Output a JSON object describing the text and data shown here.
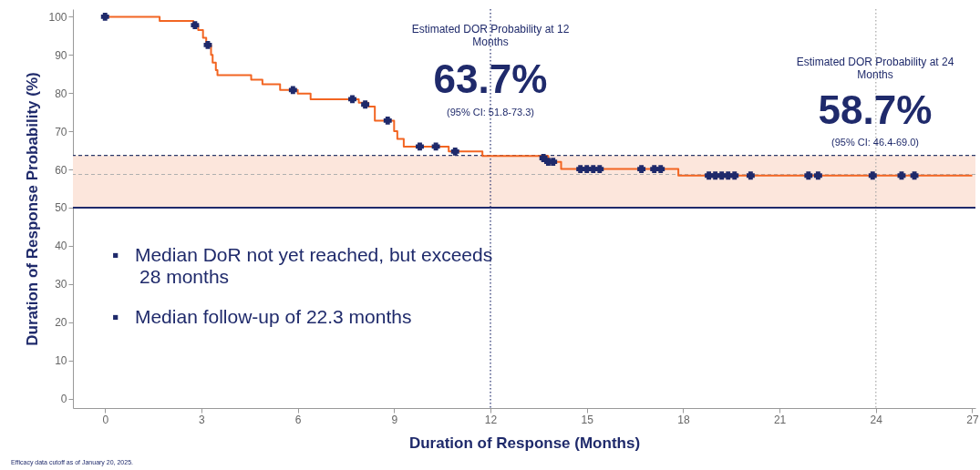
{
  "chart_data": {
    "type": "step",
    "xlabel": "Duration of Response (Months)",
    "ylabel": "Duration of Response Probability (%)",
    "xlim": [
      -1,
      27.1
    ],
    "ylim": [
      -2.5,
      102
    ],
    "xticks": [
      0,
      3,
      6,
      9,
      12,
      15,
      18,
      21,
      24,
      27
    ],
    "yticks": [
      0,
      10,
      20,
      30,
      40,
      50,
      60,
      70,
      80,
      90,
      100
    ],
    "grid": false,
    "series": [
      {
        "type": "step",
        "color": "#f26522",
        "line_style": "solid",
        "marker": "none",
        "x": [
          0,
          1.7,
          2.75,
          2.9,
          3.05,
          3.15,
          3.3,
          3.35,
          3.45,
          3.5,
          4.55,
          4.9,
          5.45,
          6.0,
          6.4,
          7.9,
          8.2,
          8.4,
          9.0,
          9.1,
          9.3,
          10.7,
          11.75,
          13.8,
          14.2,
          17.85,
          27
        ],
        "values": [
          100,
          98.9,
          97.8,
          96.5,
          94.5,
          92.6,
          90,
          88,
          86,
          84.7,
          83.5,
          82.3,
          80.8,
          79.9,
          78.4,
          77.5,
          76.5,
          72.8,
          70,
          68,
          66,
          64.7,
          63.5,
          62,
          60.1,
          58.4,
          58.4
        ]
      },
      {
        "type": "scatter",
        "color": "#1f2a6b",
        "marker": "cross",
        "x": [
          0,
          2.8,
          3.2,
          5.85,
          7.7,
          8.1,
          8.8,
          9.8,
          10.3,
          10.9,
          13.65,
          13.8,
          13.95,
          14.8,
          15.0,
          15.2,
          15.4,
          16.7,
          17.1,
          17.3,
          18.8,
          19.0,
          19.2,
          19.4,
          19.6,
          20.1,
          21.9,
          22.2,
          23.9,
          24.8,
          25.2
        ],
        "values": [
          100,
          97.8,
          92.6,
          80.8,
          78.4,
          77,
          72.8,
          66,
          66,
          64.7,
          63,
          62,
          62,
          60.1,
          60.1,
          60.1,
          60.1,
          60.1,
          60.1,
          60.1,
          58.4,
          58.4,
          58.4,
          58.4,
          58.4,
          58.4,
          58.4,
          58.4,
          58.4,
          58.4,
          58.4
        ]
      }
    ],
    "ref_lines": [
      {
        "axis": "y",
        "value": 63.7,
        "line_style": "dashed",
        "color": "#2b3a6b"
      },
      {
        "axis": "y",
        "value": 58.7,
        "line_style": "dashed",
        "color": "#b0b0b0"
      },
      {
        "axis": "x",
        "value": 12,
        "line_style": "dotted",
        "color": "#1f2a6b"
      },
      {
        "axis": "x",
        "value": 24,
        "line_style": "dotted",
        "color": "#a8a8a8"
      },
      {
        "axis": "y",
        "value": 50,
        "line_style": "solid",
        "color": "#1f2a6b"
      }
    ],
    "bands": [
      {
        "axis": "y",
        "from": 50,
        "to": 63.7,
        "color": "#fce6dc"
      }
    ],
    "annotations": [
      "Estimated DOR Probability at 12 Months",
      "63.7%",
      "(95% CI: 51.8-73.3)",
      "Estimated DOR Probability at 24 Months",
      "58.7%",
      "(95% CI: 46.4-69.0)",
      "▪   Median DoR not yet reached, but exceeds 28 months",
      "▪   Median follow-up of 22.3 months",
      "Efficacy data cutoff as of January 20, 2025."
    ]
  }
}
